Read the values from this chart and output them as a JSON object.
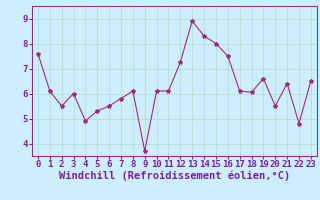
{
  "x": [
    0,
    1,
    2,
    3,
    4,
    5,
    6,
    7,
    8,
    9,
    10,
    11,
    12,
    13,
    14,
    15,
    16,
    17,
    18,
    19,
    20,
    21,
    22,
    23
  ],
  "y": [
    7.6,
    6.1,
    5.5,
    6.0,
    4.9,
    5.3,
    5.5,
    5.8,
    6.1,
    3.7,
    6.1,
    6.1,
    7.25,
    8.9,
    8.3,
    8.0,
    7.5,
    6.1,
    6.05,
    6.6,
    5.5,
    6.4,
    4.8,
    6.5
  ],
  "line_color": "#9b2d7f",
  "marker": "*",
  "marker_size": 3,
  "background_color": "#cceeff",
  "grid_color": "#aaddcc",
  "xlabel": "Windchill (Refroidissement éolien,°C)",
  "tick_fontsize": 6.5,
  "xlabel_fontsize": 7.5,
  "ylim": [
    3.5,
    9.5
  ],
  "xlim": [
    -0.5,
    23.5
  ],
  "yticks": [
    4,
    5,
    6,
    7,
    8,
    9
  ],
  "xticks": [
    0,
    1,
    2,
    3,
    4,
    5,
    6,
    7,
    8,
    9,
    10,
    11,
    12,
    13,
    14,
    15,
    16,
    17,
    18,
    19,
    20,
    21,
    22,
    23
  ],
  "spine_color": "#9b2d7f",
  "label_color": "#7b1fa2"
}
